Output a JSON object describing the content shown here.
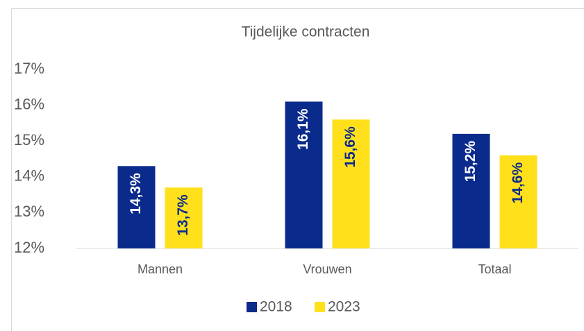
{
  "chart_data": {
    "type": "bar",
    "title": "Tijdelijke contracten",
    "categories": [
      "Mannen",
      "Vrouwen",
      "Totaal"
    ],
    "series": [
      {
        "name": "2018",
        "color": "#0a2a8c",
        "values": [
          14.3,
          16.1,
          15.2
        ],
        "value_labels": [
          "14,3%",
          "16,1%",
          "15,2%"
        ]
      },
      {
        "name": "2023",
        "color": "#ffe01b",
        "values": [
          13.7,
          15.6,
          14.6
        ],
        "value_labels": [
          "13,7%",
          "15,6%",
          "14,6%"
        ]
      }
    ],
    "ylim": [
      12,
      17
    ],
    "yticks": [
      {
        "value": 12,
        "label": "12%"
      },
      {
        "value": 13,
        "label": "13%"
      },
      {
        "value": 14,
        "label": "14%"
      },
      {
        "value": 15,
        "label": "15%"
      },
      {
        "value": 16,
        "label": "16%"
      },
      {
        "value": 17,
        "label": "17%"
      }
    ],
    "legend": "bottom"
  }
}
